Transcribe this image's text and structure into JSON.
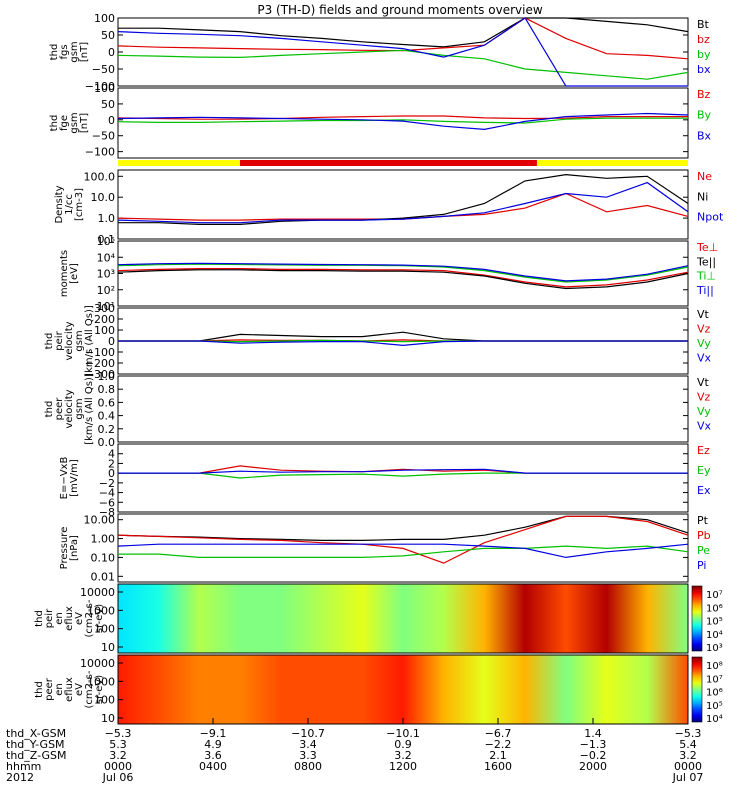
{
  "chart_data": {
    "type": "line",
    "title": "P3 (TH-D) fields and ground moments overview",
    "panels": [
      {
        "ylabel": [
          "thd",
          "fgs",
          "gsm",
          "[nT]"
        ],
        "yscale": "linear",
        "ylim": [
          -100,
          100
        ],
        "yticks": [
          "100",
          "50",
          "0",
          "−50",
          "−100"
        ],
        "yticks_values": [
          100,
          50,
          0,
          -50,
          -100
        ],
        "series": [
          {
            "name": "Bt",
            "color": "#000000",
            "values": [
              70,
              70,
              65,
              60,
              48,
              40,
              30,
              22,
              15,
              30,
              100,
              100,
              90,
              80,
              60
            ]
          },
          {
            "name": "bz",
            "color": "#e00000",
            "values": [
              18,
              14,
              12,
              10,
              8,
              7,
              5,
              4,
              12,
              20,
              100,
              40,
              -5,
              -10,
              -20
            ]
          },
          {
            "name": "by",
            "color": "#00c000",
            "values": [
              -10,
              -12,
              -15,
              -16,
              -10,
              -5,
              0,
              5,
              -10,
              -20,
              -50,
              -60,
              -70,
              -80,
              -60
            ]
          },
          {
            "name": "bx",
            "color": "#0000e0",
            "values": [
              60,
              55,
              52,
              48,
              40,
              30,
              20,
              10,
              -15,
              20,
              100,
              -100,
              -100,
              -100,
              -100
            ]
          }
        ]
      },
      {
        "ylabel": [
          "thd",
          "fge",
          "gsm",
          "[nT]"
        ],
        "yscale": "linear",
        "ylim": [
          -120,
          100
        ],
        "yticks": [
          "100",
          "50",
          "0",
          "−50",
          "−100"
        ],
        "yticks_values": [
          100,
          50,
          0,
          -50,
          -100
        ],
        "series": [
          {
            "name": "Bz",
            "color": "#e00000",
            "values": [
              6,
              4,
              2,
              2,
              4,
              8,
              10,
              12,
              12,
              6,
              4,
              5,
              10,
              10,
              10
            ]
          },
          {
            "name": "By",
            "color": "#00c000",
            "values": [
              -6,
              -8,
              -8,
              -6,
              -4,
              -2,
              -2,
              0,
              -5,
              -8,
              -10,
              2,
              5,
              5,
              5
            ]
          },
          {
            "name": "Bx",
            "color": "#0000e0",
            "values": [
              4,
              6,
              8,
              6,
              4,
              2,
              0,
              -4,
              -20,
              -30,
              -5,
              10,
              15,
              20,
              15
            ]
          }
        ]
      },
      {
        "ylabel": [
          "Density",
          "1/cc",
          "[cm-3]"
        ],
        "yscale": "log",
        "ylim": [
          0.1,
          200
        ],
        "yticks": [
          "100.0",
          "10.0",
          "1.0",
          "0.1"
        ],
        "yticks_values": [
          100,
          10,
          1,
          0.1
        ],
        "series": [
          {
            "name": "Ne",
            "color": "#e00000",
            "values": [
              1.0,
              0.9,
              0.8,
              0.8,
              0.9,
              0.9,
              0.9,
              0.9,
              1.2,
              1.5,
              3,
              15,
              2,
              4,
              1.2
            ]
          },
          {
            "name": "Ni",
            "color": "#000000",
            "values": [
              0.6,
              0.6,
              0.5,
              0.5,
              0.7,
              0.8,
              0.8,
              1.0,
              1.5,
              5,
              60,
              120,
              80,
              100,
              5
            ]
          },
          {
            "name": "Npot",
            "color": "#0000e0",
            "values": [
              0.8,
              0.7,
              0.6,
              0.6,
              0.8,
              0.8,
              0.8,
              0.9,
              1.2,
              1.8,
              5,
              15,
              10,
              50,
              2
            ]
          }
        ]
      },
      {
        "ylabel": [
          "moments",
          "[eV]"
        ],
        "yscale": "log",
        "ylim": [
          10,
          100000
        ],
        "yticks": [
          "10⁵",
          "10⁴",
          "10³",
          "10²",
          "10¹"
        ],
        "yticks_values": [
          100000,
          10000,
          1000,
          100,
          10
        ],
        "series": [
          {
            "name": "Te⊥",
            "color": "#e00000",
            "values": [
              1500,
              1800,
              2000,
              2000,
              1800,
              1800,
              1700,
              1700,
              1500,
              800,
              300,
              150,
              200,
              400,
              1200
            ]
          },
          {
            "name": "Te||",
            "color": "#000000",
            "values": [
              1200,
              1500,
              1700,
              1700,
              1500,
              1500,
              1400,
              1400,
              1200,
              700,
              250,
              120,
              150,
              300,
              1000
            ]
          },
          {
            "name": "Ti⊥",
            "color": "#00c000",
            "values": [
              3000,
              3500,
              3800,
              3600,
              3400,
              3200,
              3200,
              3000,
              2500,
              1500,
              600,
              300,
              400,
              800,
              2500
            ]
          },
          {
            "name": "Ti||",
            "color": "#0000e0",
            "values": [
              3500,
              4000,
              4200,
              4000,
              3800,
              3600,
              3500,
              3300,
              2800,
              1800,
              700,
              350,
              450,
              900,
              3000
            ]
          }
        ]
      },
      {
        "ylabel": [
          "thd",
          "peir",
          "velocity",
          "gsm",
          "[km/s (All Qs)]"
        ],
        "yscale": "linear",
        "ylim": [
          -300,
          300
        ],
        "yticks": [
          "300",
          "200",
          "100",
          "0",
          "−100",
          "−200",
          "−300"
        ],
        "yticks_values": [
          300,
          200,
          100,
          0,
          -100,
          -200,
          -300
        ],
        "series": [
          {
            "name": "Vt",
            "color": "#000000",
            "values": [
              0,
              0,
              0,
              60,
              50,
              40,
              40,
              80,
              20,
              0,
              0,
              0,
              0,
              0,
              0
            ]
          },
          {
            "name": "Vz",
            "color": "#e00000",
            "values": [
              0,
              0,
              0,
              10,
              5,
              5,
              0,
              10,
              0,
              0,
              0,
              0,
              0,
              0,
              0
            ]
          },
          {
            "name": "Vy",
            "color": "#00c000",
            "values": [
              0,
              0,
              0,
              -5,
              0,
              5,
              0,
              -5,
              0,
              0,
              0,
              0,
              0,
              0,
              0
            ]
          },
          {
            "name": "Vx",
            "color": "#0000e0",
            "values": [
              0,
              0,
              0,
              -20,
              -10,
              -5,
              -5,
              -40,
              -5,
              0,
              0,
              0,
              0,
              0,
              0
            ]
          }
        ]
      },
      {
        "ylabel": [
          "thd",
          "peer",
          "velocity",
          "gsm",
          "[km/s (All Qs)]"
        ],
        "yscale": "linear",
        "ylim": [
          0,
          1
        ],
        "yticks": [
          "1.0",
          "0.8",
          "0.6",
          "0.4",
          "0.2",
          "0.0"
        ],
        "yticks_values": [
          1,
          0.8,
          0.6,
          0.4,
          0.2,
          0
        ],
        "series": [
          {
            "name": "Vt",
            "color": "#000000",
            "values": []
          },
          {
            "name": "Vz",
            "color": "#e00000",
            "values": []
          },
          {
            "name": "Vy",
            "color": "#00c000",
            "values": []
          },
          {
            "name": "Vx",
            "color": "#0000e0",
            "values": []
          }
        ]
      },
      {
        "ylabel": [
          "E=−VxB",
          "[mV/m]"
        ],
        "yscale": "linear",
        "ylim": [
          -8,
          6
        ],
        "yticks": [
          "4",
          "2",
          "0",
          "−2",
          "−4",
          "−6",
          "−8"
        ],
        "yticks_values": [
          4,
          2,
          0,
          -2,
          -4,
          -6,
          -8
        ],
        "series": [
          {
            "name": "Ez",
            "color": "#e00000",
            "values": [
              0,
              0,
              0,
              1.5,
              0.6,
              0.4,
              0.3,
              0.8,
              0.4,
              0.6,
              0,
              0,
              0,
              0,
              0
            ]
          },
          {
            "name": "Ey",
            "color": "#00c000",
            "values": [
              0,
              0,
              0,
              -1.0,
              -0.4,
              -0.3,
              -0.2,
              -0.6,
              -0.2,
              0,
              0,
              0,
              0,
              0,
              0
            ]
          },
          {
            "name": "Ex",
            "color": "#0000e0",
            "values": [
              0,
              0,
              0,
              0.4,
              0.2,
              0.3,
              0.3,
              0.6,
              0.7,
              0.8,
              0,
              0,
              0,
              0,
              0
            ]
          }
        ]
      },
      {
        "ylabel": [
          "Pressure",
          "[nPa]"
        ],
        "yscale": "log",
        "ylim": [
          0.005,
          20
        ],
        "yticks": [
          "10.00",
          "1.00",
          "0.10",
          "0.01"
        ],
        "yticks_values": [
          10,
          1,
          0.1,
          0.01
        ],
        "series": [
          {
            "name": "Pt",
            "color": "#000000",
            "values": [
              1.5,
              1.3,
              1.2,
              1.0,
              0.9,
              0.8,
              0.8,
              0.9,
              0.9,
              1.5,
              4,
              15,
              15,
              10,
              2
            ]
          },
          {
            "name": "Pb",
            "color": "#e00000",
            "values": [
              1.5,
              1.3,
              1.1,
              0.9,
              0.8,
              0.6,
              0.5,
              0.3,
              0.05,
              0.6,
              3,
              15,
              15,
              8,
              1.5
            ]
          },
          {
            "name": "Pe",
            "color": "#00c000",
            "values": [
              0.15,
              0.15,
              0.1,
              0.1,
              0.1,
              0.1,
              0.1,
              0.12,
              0.2,
              0.3,
              0.3,
              0.4,
              0.3,
              0.4,
              0.2
            ]
          },
          {
            "name": "Pi",
            "color": "#0000e0",
            "values": [
              0.4,
              0.5,
              0.5,
              0.5,
              0.5,
              0.5,
              0.5,
              0.5,
              0.5,
              0.4,
              0.3,
              0.1,
              0.2,
              0.3,
              0.5
            ]
          }
        ]
      }
    ],
    "spectrograms": [
      {
        "ylabel": [
          "thd",
          "peir",
          "en",
          "eflux",
          "eV",
          "(cm2-s-",
          "sr-eV)"
        ],
        "yticks": [
          "10000",
          "1000",
          "100",
          "10"
        ],
        "colorbar_ticks": [
          "10⁷",
          "10⁶",
          "10⁵",
          "10⁴",
          "10³"
        ],
        "colorbar_exponents": [
          7,
          6,
          5,
          4,
          3
        ]
      },
      {
        "ylabel": [
          "thd",
          "peer",
          "en",
          "eflux",
          "eV",
          "(cm2-s-",
          "sr-eV)"
        ],
        "yticks": [
          "10000",
          "1000",
          "100",
          "10"
        ],
        "colorbar_ticks": [
          "10⁸",
          "10⁷",
          "10⁶",
          "10⁵",
          "10⁴"
        ],
        "colorbar_exponents": [
          8,
          7,
          6,
          5,
          4
        ]
      }
    ],
    "mode_bar": {
      "segments": [
        {
          "from": 0.0,
          "to": 0.214,
          "color": "#ffff00"
        },
        {
          "from": 0.214,
          "to": 0.735,
          "color": "#e00000"
        },
        {
          "from": 0.735,
          "to": 1.0,
          "color": "#ffff00"
        }
      ]
    },
    "xaxis": {
      "xlim": [
        0,
        24
      ],
      "tick_hours": [
        0,
        4,
        8,
        12,
        16,
        20,
        24
      ],
      "row_labels": [
        "thd_X-GSM",
        "thd_Y-GSM",
        "thd_Z-GSM",
        "hhmm",
        "2012"
      ],
      "columns": [
        [
          "−5.3",
          "5.3",
          "3.2",
          "0000",
          "Jul 06"
        ],
        [
          "−9.1",
          "4.9",
          "3.6",
          "0400",
          ""
        ],
        [
          "−10.7",
          "3.4",
          "3.3",
          "0800",
          ""
        ],
        [
          "−10.1",
          "0.9",
          "3.2",
          "1200",
          ""
        ],
        [
          "−6.7",
          "−2.2",
          "2.1",
          "1600",
          ""
        ],
        [
          "1.4",
          "−1.3",
          "−0.2",
          "2000",
          ""
        ],
        [
          "−5.3",
          "5.4",
          "3.2",
          "0000",
          "Jul 07"
        ]
      ]
    }
  }
}
